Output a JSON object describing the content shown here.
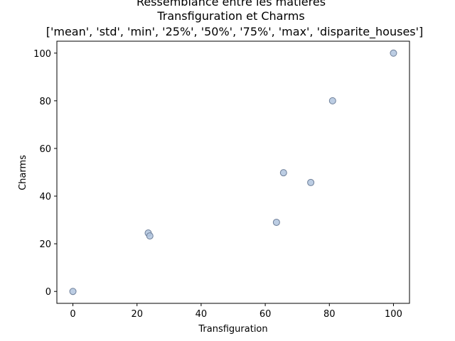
{
  "chart_data": {
    "type": "scatter",
    "title": "Ressemblance entre les matières",
    "subtitle_line1": "Transfiguration et Charms",
    "subtitle_line2": "['mean', 'std', 'min', '25%', '50%', '75%', 'max', 'disparite_houses']",
    "xlabel": "Transfiguration",
    "ylabel": "Charms",
    "xlim": [
      -5,
      105
    ],
    "ylim": [
      -5,
      105
    ],
    "xticks": [
      0,
      20,
      40,
      60,
      80,
      100
    ],
    "yticks": [
      0,
      20,
      40,
      60,
      80,
      100
    ],
    "grid": false,
    "marker_fill": "#b0c4de",
    "marker_edge": "#6e7f99",
    "points": [
      {
        "x": 0,
        "y": 0
      },
      {
        "x": 23.5,
        "y": 24.5
      },
      {
        "x": 24,
        "y": 23.3
      },
      {
        "x": 63.5,
        "y": 29
      },
      {
        "x": 65.7,
        "y": 49.8
      },
      {
        "x": 74.2,
        "y": 45.7
      },
      {
        "x": 81,
        "y": 80
      },
      {
        "x": 100,
        "y": 100
      }
    ]
  }
}
